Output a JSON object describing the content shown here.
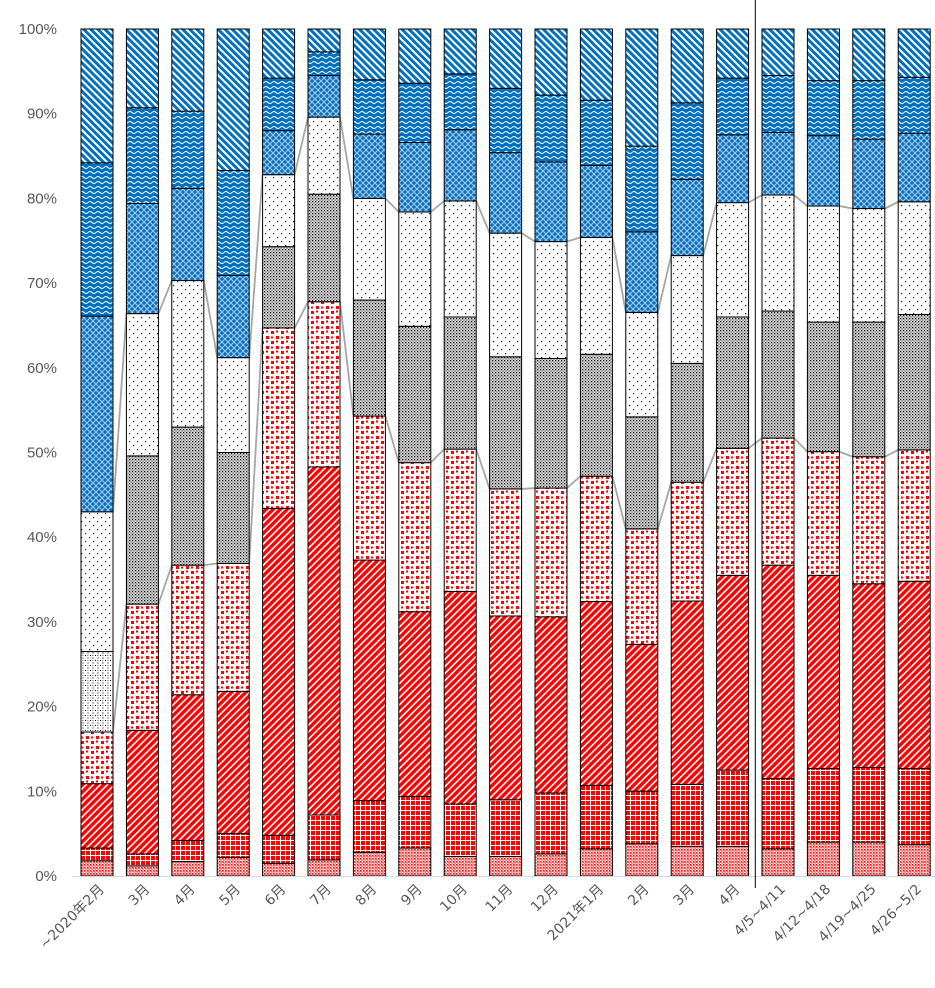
{
  "chart_data": {
    "type": "bar",
    "stacked": true,
    "percent": true,
    "categories": [
      "~2020年2月",
      "3月",
      "4月",
      "5月",
      "6月",
      "7月",
      "8月",
      "9月",
      "10月",
      "11月",
      "12月",
      "2021年1月",
      "2月",
      "3月",
      "4月",
      "4/5~4/11",
      "4/12~4/18",
      "4/19~4/25",
      "4/26~5/2"
    ],
    "yticks": [
      "0%",
      "10%",
      "20%",
      "30%",
      "40%",
      "50%",
      "60%",
      "70%",
      "80%",
      "90%",
      "100%"
    ],
    "ylim": [
      0,
      100
    ],
    "grid": false,
    "legend": "none",
    "series": [
      {
        "color": "#ff0000",
        "pattern": "dots-dense",
        "values": [
          1.8,
          1.2,
          1.7,
          2.2,
          1.5,
          1.9,
          2.8,
          3.3,
          2.3,
          2.3,
          2.6,
          3.2,
          3.8,
          3.5,
          3.5,
          3.2,
          4.0,
          4.0,
          3.7
        ]
      },
      {
        "color": "#ff0000",
        "pattern": "grid",
        "values": [
          1.5,
          1.4,
          2.5,
          2.8,
          3.3,
          5.3,
          6.1,
          6.1,
          6.2,
          6.7,
          7.2,
          7.5,
          6.2,
          7.3,
          9.0,
          8.3,
          8.7,
          8.8,
          9.0
        ]
      },
      {
        "color": "#ff0000",
        "pattern": "diagonal",
        "values": [
          7.6,
          14.6,
          17.2,
          16.8,
          38.6,
          41.1,
          28.4,
          21.8,
          25.1,
          21.7,
          20.8,
          21.7,
          17.3,
          21.6,
          23.0,
          25.2,
          22.8,
          21.7,
          22.1
        ]
      },
      {
        "color": "#ff0000",
        "pattern": "confetti",
        "values": [
          6.1,
          14.9,
          15.3,
          15.1,
          21.3,
          19.5,
          17.0,
          17.6,
          16.8,
          15.0,
          15.2,
          14.8,
          13.6,
          14.0,
          15.0,
          15.0,
          14.6,
          15.0,
          15.5
        ]
      },
      {
        "color": "#000000",
        "pattern": "fine-dots-sparse",
        "values": [
          9.5,
          0,
          0,
          0,
          0,
          0,
          0,
          0,
          0,
          0,
          0,
          0,
          0,
          0,
          0,
          0,
          0,
          0,
          0
        ]
      },
      {
        "color": "#000000",
        "pattern": "fine-dots",
        "values": [
          0,
          17.5,
          16.3,
          13.1,
          9.6,
          12.7,
          13.7,
          16.1,
          15.6,
          15.6,
          15.3,
          14.4,
          13.2,
          14.0,
          15.5,
          15.0,
          15.3,
          15.9,
          16.0
        ]
      },
      {
        "color": "#000000",
        "pattern": "sparse-dots",
        "values": [
          16.5,
          16.8,
          17.3,
          11.2,
          8.5,
          9.1,
          12.0,
          13.5,
          13.7,
          14.6,
          13.8,
          13.8,
          12.3,
          12.7,
          13.5,
          13.7,
          13.7,
          13.4,
          13.3
        ]
      },
      {
        "color": "#0070c0",
        "pattern": "lattice",
        "values": [
          23.1,
          13.0,
          10.9,
          9.7,
          5.2,
          4.9,
          7.6,
          8.2,
          8.4,
          9.5,
          9.4,
          8.5,
          9.5,
          9.0,
          8.0,
          7.4,
          8.3,
          8.2,
          8.1
        ]
      },
      {
        "color": "#0070c0",
        "pattern": "wave",
        "values": [
          18.1,
          11.3,
          9.1,
          12.4,
          6.2,
          2.8,
          6.4,
          7.0,
          6.6,
          7.6,
          7.9,
          7.7,
          10.1,
          9.0,
          6.7,
          6.7,
          6.5,
          6.9,
          6.6
        ]
      },
      {
        "color": "#0070c0",
        "pattern": "diag-stripe",
        "values": [
          15.8,
          9.3,
          9.7,
          16.7,
          5.8,
          2.7,
          6.0,
          6.4,
          5.3,
          7.0,
          7.8,
          8.4,
          13.8,
          8.7,
          5.8,
          5.5,
          6.1,
          6.1,
          5.7
        ]
      }
    ],
    "connector_boundaries": [
      4,
      7
    ],
    "divider_after_category": 14
  }
}
